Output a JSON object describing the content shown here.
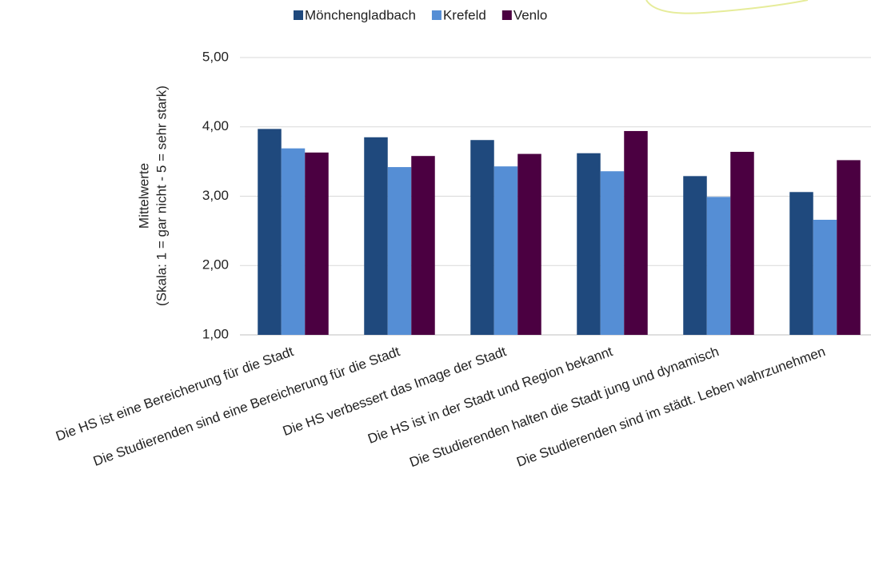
{
  "chart_data": {
    "type": "bar",
    "ylabel": [
      "Mittelwerte",
      "(Skala: 1 = gar nicht - 5 = sehr stark)"
    ],
    "categories": [
      "Die HS ist eine Bereicherung für die Stadt",
      "Die Studierenden sind eine Bereicherung für die Stadt",
      "Die HS verbessert das Image der Stadt",
      "Die HS ist in der Stadt und Region bekannt",
      "Die Studierenden  halten die Stadt  jung und dynamisch",
      "Die Studierenden sind im städt. Leben wahrzunehmen"
    ],
    "series": [
      {
        "name": "Mönchengladbach",
        "color": "#1f497d",
        "values": [
          3.97,
          3.85,
          3.81,
          3.62,
          3.29,
          3.06
        ]
      },
      {
        "name": "Krefeld",
        "color": "#558ed5",
        "values": [
          3.69,
          3.42,
          3.43,
          3.36,
          2.99,
          2.66
        ]
      },
      {
        "name": "Venlo",
        "color": "#4b0041",
        "values": [
          3.63,
          3.58,
          3.61,
          3.94,
          3.64,
          3.52
        ]
      }
    ],
    "ylim": [
      1,
      5
    ],
    "yticks": [
      {
        "value": 1,
        "label": "1,00"
      },
      {
        "value": 2,
        "label": "2,00"
      },
      {
        "value": 3,
        "label": "3,00"
      },
      {
        "value": 4,
        "label": "4,00"
      },
      {
        "value": 5,
        "label": "5,00"
      }
    ],
    "grid": true
  }
}
